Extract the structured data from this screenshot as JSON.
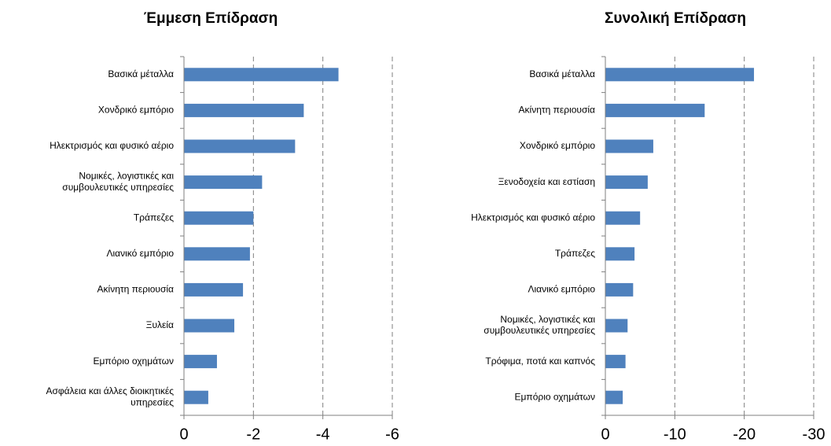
{
  "chart_data": [
    {
      "type": "bar",
      "orientation": "horizontal",
      "title": "Έμμεση Επίδραση",
      "categories": [
        "Βασικά μέταλλα",
        "Χονδρικό εμπόριο",
        "Ηλεκτρισμός και φυσικό αέριο",
        "Νομικές, λογιστικές και\nσυμβουλευτικές υπηρεσίες",
        "Τράπεζες",
        "Λιανικό εμπόριο",
        "Ακίνητη περιουσία",
        "Ξυλεία",
        "Εμπόριο οχημάτων",
        "Ασφάλεια και άλλες διοικητικές\nυπηρεσίες"
      ],
      "values": [
        -4.45,
        -3.45,
        -3.2,
        -2.25,
        -2.0,
        -1.9,
        -1.7,
        -1.45,
        -0.95,
        -0.7
      ],
      "color": "#4f81bd",
      "xlim": [
        0,
        -6
      ],
      "xticks": [
        0,
        -2,
        -4,
        -6
      ],
      "grid": true
    },
    {
      "type": "bar",
      "orientation": "horizontal",
      "title": "Συνολική Επίδραση",
      "categories": [
        "Βασικά μέταλλα",
        "Ακίνητη περιουσία",
        "Χονδρικό εμπόριο",
        "Ξενοδοχεία και εστίαση",
        "Ηλεκτρισμός και φυσικό αέριο",
        "Τράπεζες",
        "Λιανικό εμπόριο",
        "Νομικές, λογιστικές και\nσυμβουλευτικές υπηρεσίες",
        "Τρόφιμα, ποτά και καπνός",
        "Εμπόριο οχημάτων"
      ],
      "values": [
        -21.4,
        -14.3,
        -6.9,
        -6.1,
        -5.0,
        -4.2,
        -4.0,
        -3.2,
        -2.9,
        -2.5
      ],
      "color": "#4f81bd",
      "xlim": [
        0,
        -30
      ],
      "xticks": [
        0,
        -10,
        -20,
        -30
      ],
      "grid": true
    }
  ]
}
